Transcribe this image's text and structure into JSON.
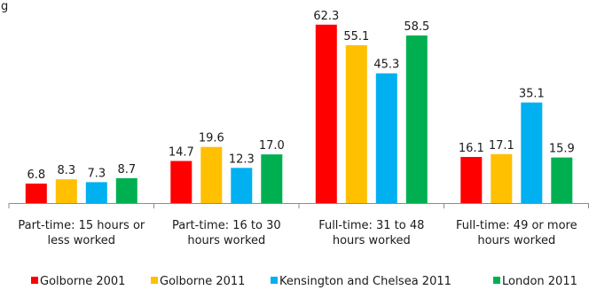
{
  "fragment_text": "g",
  "chart_data": {
    "type": "bar",
    "categories": [
      [
        "Part-time: 15 hours or",
        "less worked"
      ],
      [
        "Part-time: 16 to 30",
        "hours worked"
      ],
      [
        "Full-time: 31 to 48",
        "hours worked"
      ],
      [
        "Full-time: 49 or more",
        "hours worked"
      ]
    ],
    "series": [
      {
        "name": "Golborne 2001",
        "color": "#ff0000",
        "values": [
          6.8,
          14.7,
          62.3,
          16.1
        ]
      },
      {
        "name": "Golborne 2011",
        "color": "#ffc000",
        "values": [
          8.3,
          19.6,
          55.1,
          17.1
        ]
      },
      {
        "name": "Kensington and Chelsea 2011",
        "color": "#00b0f0",
        "values": [
          7.3,
          12.3,
          45.3,
          35.1
        ]
      },
      {
        "name": "London 2011",
        "color": "#00b050",
        "values": [
          8.7,
          17.0,
          58.5,
          15.9
        ]
      }
    ],
    "ylim": [
      0,
      66
    ],
    "grid": false,
    "legend": "bottom"
  }
}
